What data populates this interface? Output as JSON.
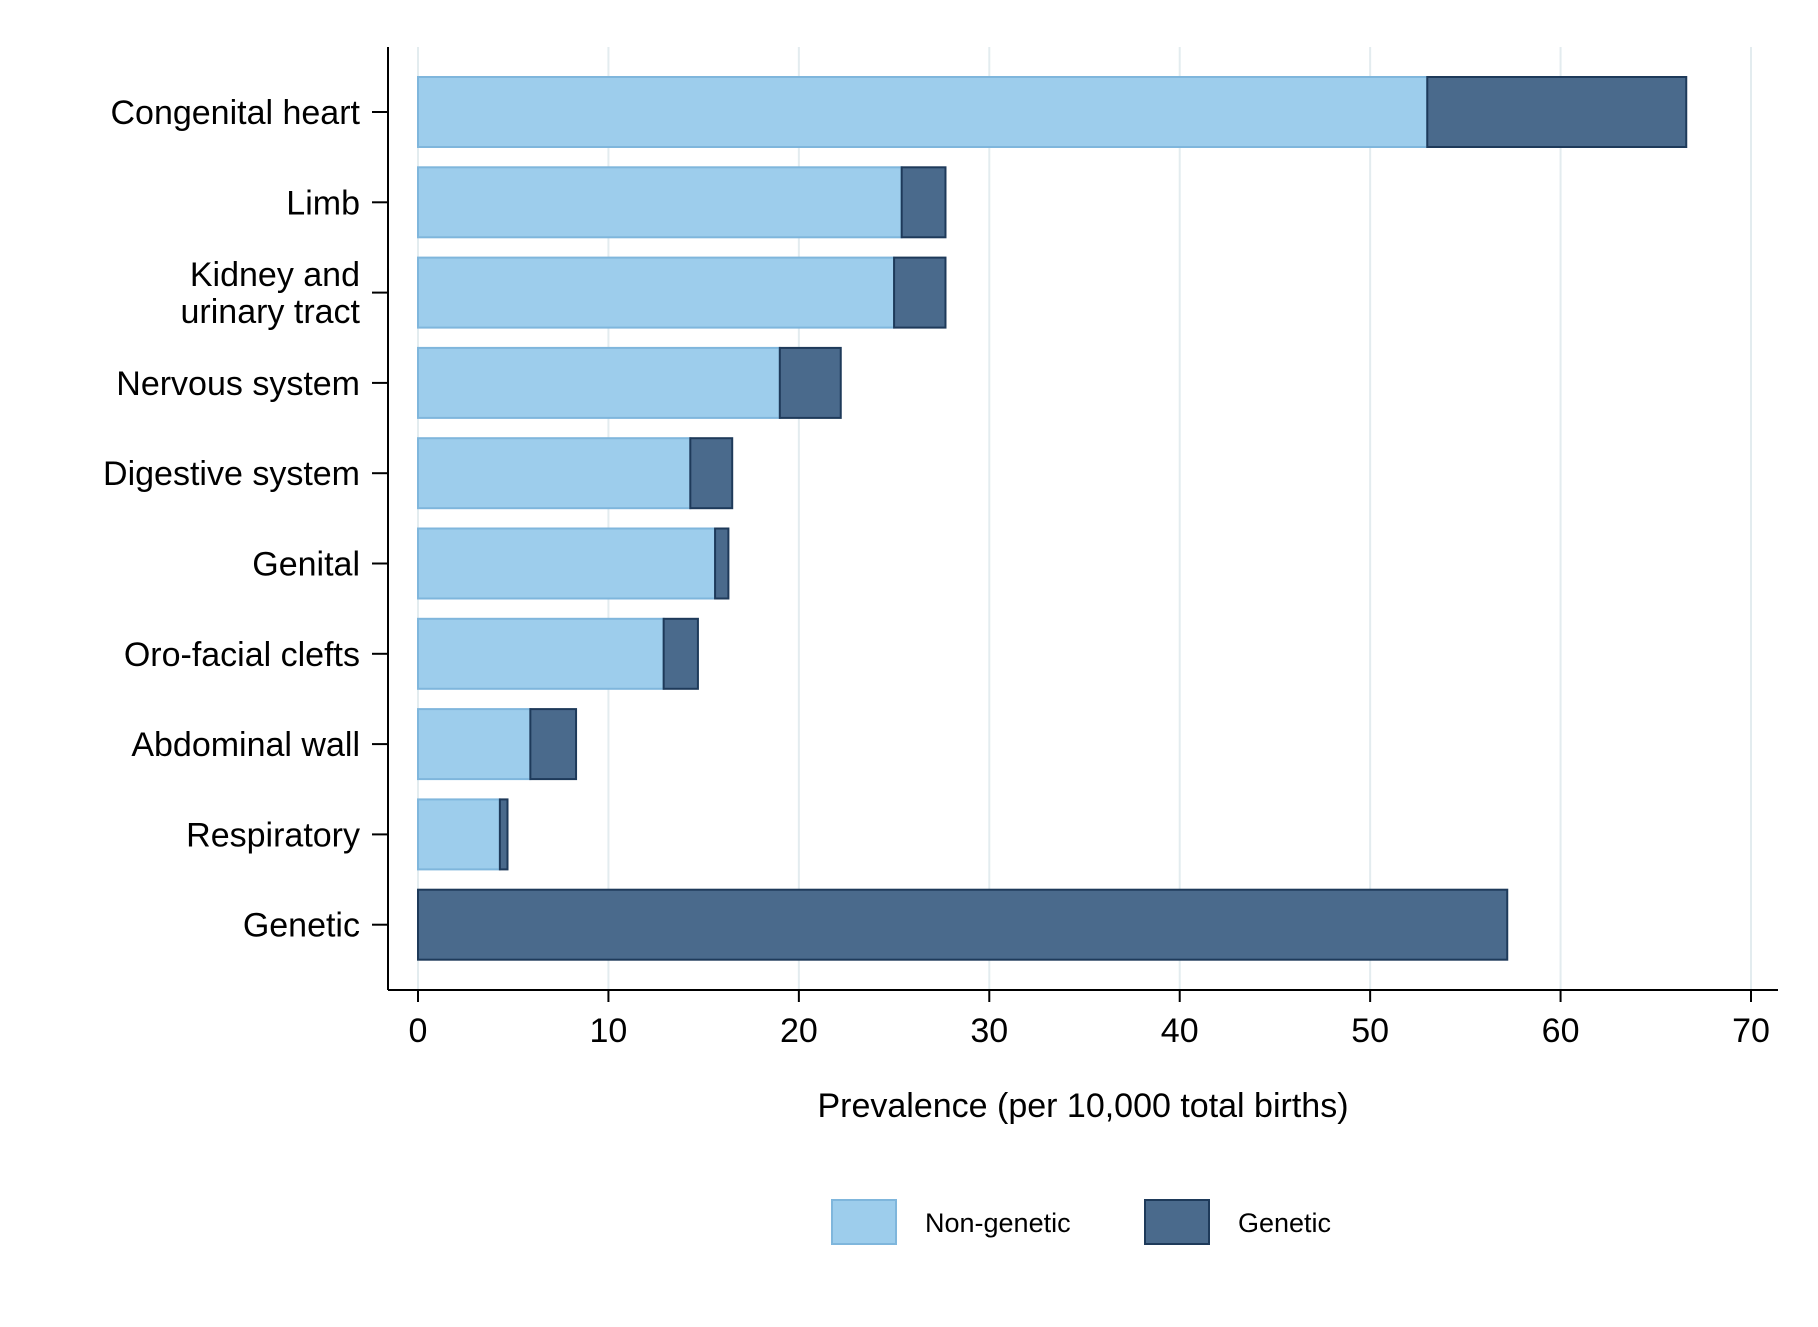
{
  "chart_data": {
    "type": "bar",
    "orientation": "horizontal",
    "stacked": true,
    "categories": [
      [
        "Congenital heart"
      ],
      [
        "Limb"
      ],
      [
        "Kidney and",
        "urinary tract"
      ],
      [
        "Nervous system"
      ],
      [
        "Digestive system"
      ],
      [
        "Genital"
      ],
      [
        "Oro-facial clefts"
      ],
      [
        "Abdominal wall"
      ],
      [
        "Respiratory"
      ],
      [
        "Genetic"
      ]
    ],
    "series": [
      {
        "name": "Non-genetic",
        "color": "#9dcdec",
        "values": [
          53.0,
          25.4,
          25.0,
          19.0,
          14.3,
          15.6,
          12.9,
          5.9,
          4.3,
          0
        ]
      },
      {
        "name": "Genetic",
        "color": "#4a6a8c",
        "values": [
          13.6,
          2.3,
          2.7,
          3.2,
          2.2,
          0.7,
          1.8,
          2.4,
          0.4,
          57.2
        ]
      }
    ],
    "xlabel": "Prevalence (per 10,000 total births)",
    "ylabel": "",
    "xlim": [
      0,
      70
    ],
    "xticks": [
      0,
      10,
      20,
      30,
      40,
      50,
      60,
      70
    ],
    "grid": true,
    "legend_position": "bottom"
  }
}
